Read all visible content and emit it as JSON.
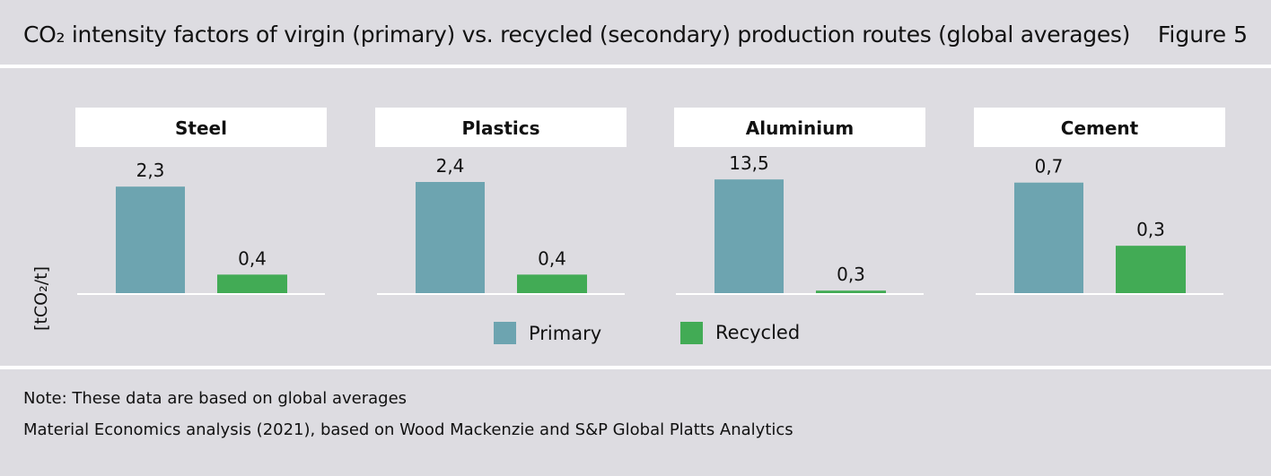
{
  "header": {
    "title": "CO₂ intensity factors of virgin (primary) vs. recycled (secondary) production routes (global averages)",
    "figure_label": "Figure 5"
  },
  "footer": {
    "note": "Note: These data are based on global averages",
    "source": "Material Economics analysis (2021), based on Wood Mackenzie and S&P Global Platts Analytics"
  },
  "colors": {
    "background": "#dddce1",
    "panel_header": "#ffffff",
    "primary": "#6da4b0",
    "recycled": "#42ab55",
    "baseline": "#ffffff"
  },
  "chart_data": {
    "type": "bar",
    "ylabel": "[tCO₂/t]",
    "legend_position": "bottom",
    "grid": false,
    "shared_y_axis": false,
    "series_names": [
      "Primary",
      "Recycled"
    ],
    "panels": [
      {
        "title": "Steel",
        "values": [
          2.3,
          0.4
        ],
        "labels": [
          "2,3",
          "0,4"
        ],
        "ylim": [
          0,
          3.0
        ]
      },
      {
        "title": "Plastics",
        "values": [
          2.4,
          0.4
        ],
        "labels": [
          "2,4",
          "0,4"
        ],
        "ylim": [
          0,
          3.0
        ]
      },
      {
        "title": "Aluminium",
        "values": [
          13.5,
          0.3
        ],
        "labels": [
          "13,5",
          "0,3"
        ],
        "ylim": [
          0,
          16.5
        ]
      },
      {
        "title": "Cement",
        "values": [
          0.7,
          0.3
        ],
        "labels": [
          "0,7",
          "0,3"
        ],
        "ylim": [
          0,
          0.88
        ]
      }
    ]
  }
}
